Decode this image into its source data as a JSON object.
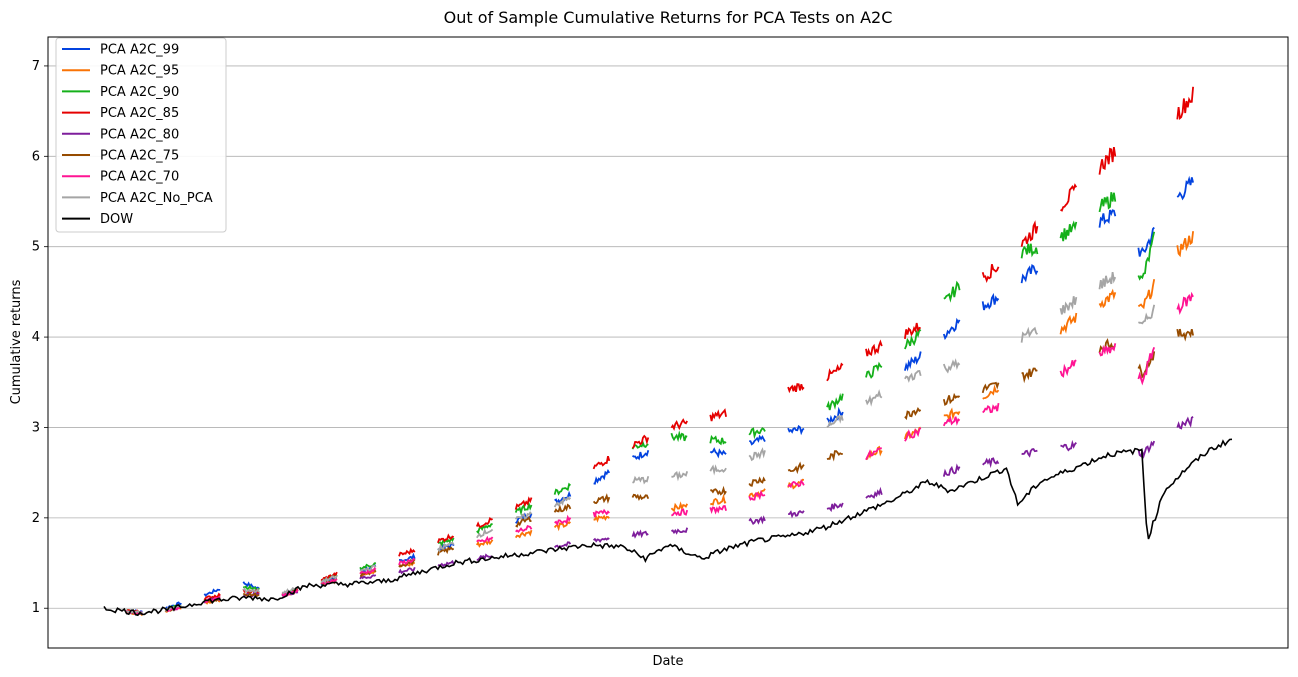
{
  "chart_data": {
    "type": "line",
    "title": "Out of Sample Cumulative Returns for PCA Tests on A2C",
    "xlabel": "Date",
    "ylabel": "Cumulative returns",
    "ylim": [
      0.56,
      7.32
    ],
    "yticks": [
      1,
      2,
      3,
      4,
      5,
      6,
      7
    ],
    "x_tick_labels_shown": false,
    "grid": "horizontal",
    "legend_position": "top-left",
    "x_domain": [
      0,
      1
    ],
    "series": [
      {
        "name": "PCA A2C_99",
        "color": "#0343df",
        "points": [
          [
            0.0,
            1.0
          ],
          [
            0.04,
            0.95
          ],
          [
            0.08,
            1.1
          ],
          [
            0.12,
            1.3
          ],
          [
            0.16,
            1.1
          ],
          [
            0.21,
            1.36
          ],
          [
            0.27,
            1.55
          ],
          [
            0.33,
            1.78
          ],
          [
            0.38,
            2.05
          ],
          [
            0.42,
            2.3
          ],
          [
            0.46,
            2.6
          ],
          [
            0.5,
            2.85
          ],
          [
            0.55,
            2.7
          ],
          [
            0.59,
            2.9
          ],
          [
            0.64,
            3.05
          ],
          [
            0.68,
            3.4
          ],
          [
            0.72,
            3.75
          ],
          [
            0.76,
            4.2
          ],
          [
            0.8,
            4.5
          ],
          [
            0.83,
            4.8
          ],
          [
            0.86,
            5.1
          ],
          [
            0.9,
            5.4
          ],
          [
            0.92,
            4.9
          ],
          [
            0.94,
            5.4
          ],
          [
            0.98,
            5.9
          ]
        ]
      },
      {
        "name": "PCA A2C_95",
        "color": "#f97306",
        "points": [
          [
            0.0,
            1.0
          ],
          [
            0.04,
            0.92
          ],
          [
            0.08,
            1.05
          ],
          [
            0.12,
            1.12
          ],
          [
            0.16,
            1.15
          ],
          [
            0.21,
            1.34
          ],
          [
            0.27,
            1.48
          ],
          [
            0.33,
            1.7
          ],
          [
            0.38,
            1.85
          ],
          [
            0.42,
            1.95
          ],
          [
            0.46,
            2.05
          ],
          [
            0.5,
            2.1
          ],
          [
            0.55,
            2.2
          ],
          [
            0.59,
            2.3
          ],
          [
            0.64,
            2.45
          ],
          [
            0.68,
            2.7
          ],
          [
            0.72,
            2.95
          ],
          [
            0.76,
            3.2
          ],
          [
            0.8,
            3.5
          ],
          [
            0.83,
            3.9
          ],
          [
            0.86,
            4.2
          ],
          [
            0.9,
            4.5
          ],
          [
            0.92,
            4.3
          ],
          [
            0.94,
            4.8
          ],
          [
            0.98,
            5.3
          ]
        ]
      },
      {
        "name": "PCA A2C_90",
        "color": "#15b01a",
        "points": [
          [
            0.0,
            1.0
          ],
          [
            0.04,
            0.94
          ],
          [
            0.08,
            1.08
          ],
          [
            0.12,
            1.25
          ],
          [
            0.16,
            1.15
          ],
          [
            0.21,
            1.38
          ],
          [
            0.27,
            1.6
          ],
          [
            0.33,
            1.85
          ],
          [
            0.38,
            2.15
          ],
          [
            0.42,
            2.4
          ],
          [
            0.46,
            2.75
          ],
          [
            0.5,
            2.9
          ],
          [
            0.55,
            2.85
          ],
          [
            0.59,
            3.0
          ],
          [
            0.64,
            3.2
          ],
          [
            0.68,
            3.6
          ],
          [
            0.72,
            4.0
          ],
          [
            0.76,
            4.6
          ],
          [
            0.8,
            4.9
          ],
          [
            0.83,
            5.0
          ],
          [
            0.86,
            5.2
          ],
          [
            0.9,
            5.6
          ],
          [
            0.92,
            4.6
          ],
          [
            0.94,
            5.5
          ],
          [
            0.98,
            6.2
          ]
        ]
      },
      {
        "name": "PCA A2C_85",
        "color": "#e50000",
        "points": [
          [
            0.0,
            1.0
          ],
          [
            0.04,
            0.95
          ],
          [
            0.08,
            1.08
          ],
          [
            0.12,
            1.2
          ],
          [
            0.16,
            1.15
          ],
          [
            0.21,
            1.4
          ],
          [
            0.27,
            1.62
          ],
          [
            0.33,
            1.9
          ],
          [
            0.38,
            2.2
          ],
          [
            0.42,
            2.45
          ],
          [
            0.46,
            2.75
          ],
          [
            0.5,
            3.0
          ],
          [
            0.55,
            3.15
          ],
          [
            0.59,
            3.35
          ],
          [
            0.64,
            3.55
          ],
          [
            0.68,
            3.85
          ],
          [
            0.72,
            4.1
          ],
          [
            0.76,
            4.5
          ],
          [
            0.8,
            4.85
          ],
          [
            0.83,
            5.25
          ],
          [
            0.86,
            5.6
          ],
          [
            0.9,
            6.1
          ],
          [
            0.92,
            5.5
          ],
          [
            0.94,
            6.3
          ],
          [
            0.98,
            6.9
          ]
        ]
      },
      {
        "name": "PCA A2C_80",
        "color": "#7e1e9c",
        "points": [
          [
            0.0,
            1.0
          ],
          [
            0.04,
            0.93
          ],
          [
            0.08,
            1.05
          ],
          [
            0.12,
            1.15
          ],
          [
            0.16,
            1.15
          ],
          [
            0.21,
            1.3
          ],
          [
            0.27,
            1.42
          ],
          [
            0.33,
            1.55
          ],
          [
            0.38,
            1.65
          ],
          [
            0.42,
            1.72
          ],
          [
            0.46,
            1.8
          ],
          [
            0.5,
            1.85
          ],
          [
            0.55,
            1.9
          ],
          [
            0.59,
            2.0
          ],
          [
            0.64,
            2.1
          ],
          [
            0.68,
            2.25
          ],
          [
            0.72,
            2.4
          ],
          [
            0.76,
            2.55
          ],
          [
            0.8,
            2.65
          ],
          [
            0.83,
            2.75
          ],
          [
            0.86,
            2.8
          ],
          [
            0.9,
            2.95
          ],
          [
            0.92,
            2.7
          ],
          [
            0.94,
            2.95
          ],
          [
            0.98,
            3.15
          ]
        ]
      },
      {
        "name": "PCA A2C_75",
        "color": "#964b00",
        "points": [
          [
            0.0,
            1.0
          ],
          [
            0.04,
            0.93
          ],
          [
            0.08,
            1.05
          ],
          [
            0.12,
            1.15
          ],
          [
            0.16,
            1.15
          ],
          [
            0.21,
            1.32
          ],
          [
            0.27,
            1.5
          ],
          [
            0.33,
            1.75
          ],
          [
            0.38,
            2.0
          ],
          [
            0.42,
            2.15
          ],
          [
            0.46,
            2.25
          ],
          [
            0.5,
            2.2
          ],
          [
            0.55,
            2.3
          ],
          [
            0.59,
            2.45
          ],
          [
            0.64,
            2.65
          ],
          [
            0.68,
            2.9
          ],
          [
            0.72,
            3.2
          ],
          [
            0.76,
            3.35
          ],
          [
            0.8,
            3.5
          ],
          [
            0.83,
            3.65
          ],
          [
            0.86,
            3.8
          ],
          [
            0.9,
            3.95
          ],
          [
            0.92,
            3.6
          ],
          [
            0.94,
            4.0
          ],
          [
            0.98,
            4.1
          ]
        ]
      },
      {
        "name": "PCA A2C_70",
        "color": "#ff1493",
        "points": [
          [
            0.0,
            1.0
          ],
          [
            0.04,
            0.93
          ],
          [
            0.08,
            1.05
          ],
          [
            0.12,
            1.18
          ],
          [
            0.16,
            1.15
          ],
          [
            0.21,
            1.33
          ],
          [
            0.27,
            1.52
          ],
          [
            0.33,
            1.72
          ],
          [
            0.38,
            1.9
          ],
          [
            0.42,
            2.0
          ],
          [
            0.46,
            2.1
          ],
          [
            0.5,
            2.05
          ],
          [
            0.55,
            2.1
          ],
          [
            0.59,
            2.3
          ],
          [
            0.64,
            2.45
          ],
          [
            0.68,
            2.7
          ],
          [
            0.72,
            2.95
          ],
          [
            0.76,
            3.1
          ],
          [
            0.8,
            3.25
          ],
          [
            0.83,
            3.45
          ],
          [
            0.86,
            3.7
          ],
          [
            0.9,
            3.9
          ],
          [
            0.92,
            3.5
          ],
          [
            0.94,
            4.2
          ],
          [
            0.98,
            4.6
          ]
        ]
      },
      {
        "name": "PCA A2C_No_PCA",
        "color": "#a5a5a5",
        "points": [
          [
            0.0,
            1.0
          ],
          [
            0.04,
            0.94
          ],
          [
            0.08,
            1.06
          ],
          [
            0.12,
            1.2
          ],
          [
            0.16,
            1.18
          ],
          [
            0.21,
            1.36
          ],
          [
            0.27,
            1.55
          ],
          [
            0.33,
            1.8
          ],
          [
            0.38,
            2.05
          ],
          [
            0.42,
            2.25
          ],
          [
            0.46,
            2.4
          ],
          [
            0.5,
            2.45
          ],
          [
            0.55,
            2.55
          ],
          [
            0.59,
            2.75
          ],
          [
            0.64,
            3.0
          ],
          [
            0.68,
            3.3
          ],
          [
            0.72,
            3.6
          ],
          [
            0.76,
            3.7
          ],
          [
            0.8,
            3.9
          ],
          [
            0.83,
            4.1
          ],
          [
            0.86,
            4.4
          ],
          [
            0.9,
            4.7
          ],
          [
            0.92,
            4.1
          ],
          [
            0.94,
            4.5
          ],
          [
            0.98,
            4.9
          ]
        ]
      },
      {
        "name": "DOW",
        "color": "#000000",
        "points": [
          [
            0.0,
            1.0
          ],
          [
            0.03,
            0.95
          ],
          [
            0.06,
            0.99
          ],
          [
            0.09,
            1.08
          ],
          [
            0.13,
            1.12
          ],
          [
            0.15,
            1.1
          ],
          [
            0.18,
            1.25
          ],
          [
            0.22,
            1.27
          ],
          [
            0.25,
            1.3
          ],
          [
            0.28,
            1.4
          ],
          [
            0.31,
            1.5
          ],
          [
            0.34,
            1.55
          ],
          [
            0.37,
            1.6
          ],
          [
            0.4,
            1.65
          ],
          [
            0.43,
            1.7
          ],
          [
            0.46,
            1.68
          ],
          [
            0.48,
            1.55
          ],
          [
            0.5,
            1.7
          ],
          [
            0.53,
            1.55
          ],
          [
            0.55,
            1.65
          ],
          [
            0.58,
            1.75
          ],
          [
            0.61,
            1.8
          ],
          [
            0.64,
            1.9
          ],
          [
            0.67,
            2.05
          ],
          [
            0.7,
            2.2
          ],
          [
            0.73,
            2.4
          ],
          [
            0.75,
            2.3
          ],
          [
            0.78,
            2.45
          ],
          [
            0.8,
            2.55
          ],
          [
            0.81,
            2.15
          ],
          [
            0.83,
            2.4
          ],
          [
            0.86,
            2.55
          ],
          [
            0.89,
            2.7
          ],
          [
            0.92,
            2.75
          ],
          [
            0.925,
            1.75
          ],
          [
            0.94,
            2.3
          ],
          [
            0.96,
            2.55
          ],
          [
            0.98,
            2.75
          ],
          [
            1.0,
            2.87
          ]
        ]
      }
    ]
  }
}
